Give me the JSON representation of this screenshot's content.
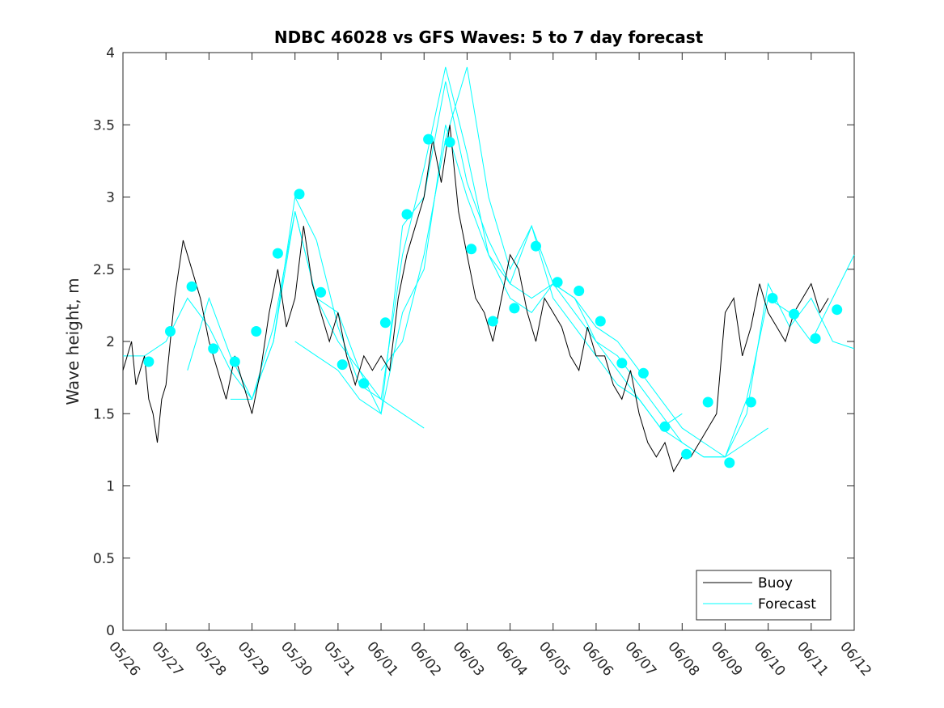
{
  "chart_data": {
    "type": "line",
    "title": "NDBC 46028 vs GFS Waves: 5 to 7 day forecast",
    "xlabel": "",
    "ylabel": "Wave height, m",
    "ylim": [
      0,
      4
    ],
    "yticks": [
      "0",
      "0.5",
      "1",
      "1.5",
      "2",
      "2.5",
      "3",
      "3.5",
      "4"
    ],
    "xlim_days": [
      0,
      17
    ],
    "xticks": [
      "05/26",
      "05/27",
      "05/28",
      "05/29",
      "05/30",
      "05/31",
      "06/01",
      "06/02",
      "06/03",
      "06/04",
      "06/05",
      "06/06",
      "06/07",
      "06/08",
      "06/09",
      "06/10",
      "06/11",
      "06/12"
    ],
    "grid": false,
    "legend_position": "bottom-right",
    "colors": {
      "buoy": "#000000",
      "forecast": "#00ffff"
    },
    "series": [
      {
        "name": "Buoy",
        "kind": "line",
        "x": [
          0,
          0.1,
          0.2,
          0.3,
          0.4,
          0.5,
          0.6,
          0.7,
          0.8,
          0.9,
          1.0,
          1.2,
          1.4,
          1.6,
          1.8,
          2.0,
          2.2,
          2.4,
          2.6,
          2.8,
          3.0,
          3.2,
          3.4,
          3.6,
          3.8,
          4.0,
          4.2,
          4.4,
          4.6,
          4.8,
          5.0,
          5.2,
          5.4,
          5.6,
          5.8,
          6.0,
          6.2,
          6.4,
          6.6,
          6.8,
          7.0,
          7.2,
          7.4,
          7.6,
          7.8,
          8.0,
          8.2,
          8.4,
          8.6,
          8.8,
          9.0,
          9.2,
          9.4,
          9.6,
          9.8,
          10.0,
          10.2,
          10.4,
          10.6,
          10.8,
          11.0,
          11.2,
          11.4,
          11.6,
          11.8,
          12.0,
          12.2,
          12.4,
          12.6,
          12.8,
          13.0,
          13.2,
          13.4,
          13.6,
          13.8,
          14.0,
          14.2,
          14.4,
          14.6,
          14.8,
          15.0,
          15.2,
          15.4,
          15.6,
          15.8,
          16.0,
          16.2,
          16.4
        ],
        "y": [
          1.8,
          1.9,
          2.0,
          1.7,
          1.8,
          1.9,
          1.6,
          1.5,
          1.3,
          1.6,
          1.7,
          2.3,
          2.7,
          2.5,
          2.3,
          2.0,
          1.8,
          1.6,
          1.9,
          1.7,
          1.5,
          1.8,
          2.2,
          2.5,
          2.1,
          2.3,
          2.8,
          2.4,
          2.2,
          2.0,
          2.2,
          1.9,
          1.7,
          1.9,
          1.8,
          1.9,
          1.8,
          2.3,
          2.6,
          2.8,
          3.0,
          3.4,
          3.1,
          3.5,
          2.9,
          2.6,
          2.3,
          2.2,
          2.0,
          2.3,
          2.6,
          2.5,
          2.2,
          2.0,
          2.3,
          2.2,
          2.1,
          1.9,
          1.8,
          2.1,
          1.9,
          1.9,
          1.7,
          1.6,
          1.8,
          1.5,
          1.3,
          1.2,
          1.3,
          1.1,
          1.2,
          1.2,
          1.3,
          1.4,
          1.5,
          2.2,
          2.3,
          1.9,
          2.1,
          2.4,
          2.2,
          2.1,
          2.0,
          2.2,
          2.3,
          2.4,
          2.2,
          2.3
        ]
      },
      {
        "name": "Forecast",
        "kind": "lines",
        "runs": [
          {
            "x": [
              0,
              0.5,
              1.0,
              1.5,
              2.0,
              2.5,
              3.0,
              3.5,
              4.0,
              4.5,
              5.0,
              5.5,
              6.0,
              6.5,
              7.0
            ],
            "y": [
              1.9,
              1.9,
              2.0,
              2.3,
              2.1,
              1.8,
              1.6,
              2.0,
              2.9,
              2.3,
              2.0,
              1.8,
              1.6,
              1.5,
              1.4
            ]
          },
          {
            "x": [
              1.5,
              2.0,
              2.5,
              3.0,
              3.5,
              4.0,
              4.5,
              5.0,
              5.5,
              6.0,
              6.5,
              7.0,
              7.5,
              8.0,
              8.5,
              9.0,
              9.5,
              10.0,
              10.5,
              11.0,
              11.5,
              12.0,
              12.5,
              13.0
            ],
            "y": [
              1.8,
              2.3,
              1.9,
              1.6,
              2.0,
              3.0,
              2.7,
              2.1,
              1.7,
              1.6,
              2.6,
              3.2,
              3.9,
              3.3,
              2.6,
              2.3,
              2.2,
              2.4,
              2.3,
              2.0,
              1.8,
              1.6,
              1.4,
              1.5
            ]
          },
          {
            "x": [
              2.5,
              3.0,
              3.5,
              4.0,
              4.5,
              5.0,
              5.5,
              6.0,
              6.5,
              7.0,
              7.5,
              8.0,
              8.5,
              9.0,
              9.5,
              10.0,
              10.5,
              11.0,
              11.5,
              12.0,
              12.5,
              13.0,
              13.5,
              14.0,
              14.5,
              15.0
            ],
            "y": [
              1.6,
              1.6,
              2.1,
              2.9,
              2.3,
              2.2,
              1.8,
              1.5,
              2.8,
              3.0,
              3.8,
              3.1,
              2.7,
              2.4,
              2.8,
              2.3,
              2.1,
              1.9,
              1.7,
              1.6,
              1.4,
              1.3,
              1.2,
              1.2,
              1.3,
              1.4
            ]
          },
          {
            "x": [
              4.0,
              4.5,
              5.0,
              5.5,
              6.0,
              6.5,
              7.0,
              7.5,
              8.0,
              8.5,
              9.0,
              9.5,
              10.0,
              10.5,
              11.0,
              11.5,
              12.0,
              12.5,
              13.0,
              13.5,
              14.0,
              14.5,
              15.0,
              15.5,
              16.0,
              16.5,
              17.0
            ],
            "y": [
              2.0,
              1.9,
              1.8,
              1.6,
              1.5,
              2.2,
              2.5,
              3.5,
              3.0,
              2.6,
              2.4,
              2.3,
              2.4,
              2.2,
              2.0,
              1.9,
              1.7,
              1.5,
              1.3,
              1.2,
              1.2,
              1.6,
              2.3,
              2.2,
              2.0,
              2.3,
              2.6
            ]
          },
          {
            "x": [
              6.0,
              6.5,
              7.0,
              7.5,
              8.0,
              8.5,
              9.0,
              9.5,
              10.0,
              10.5,
              11.0,
              11.5,
              12.0,
              12.5,
              13.0,
              13.5,
              14.0,
              14.5,
              15.0,
              15.5,
              16.0,
              16.5,
              17.0
            ],
            "y": [
              1.8,
              2.0,
              2.6,
              3.4,
              3.9,
              3.0,
              2.5,
              2.8,
              2.4,
              2.3,
              2.1,
              2.0,
              1.8,
              1.6,
              1.4,
              1.3,
              1.2,
              1.5,
              2.4,
              2.1,
              2.3,
              2.0,
              1.95
            ]
          }
        ]
      },
      {
        "name": "Forecast points",
        "kind": "scatter",
        "x": [
          0.6,
          1.1,
          1.6,
          2.1,
          2.6,
          3.1,
          3.6,
          4.1,
          4.6,
          5.1,
          5.6,
          6.1,
          6.6,
          7.1,
          7.6,
          8.1,
          8.6,
          9.1,
          9.6,
          10.1,
          10.6,
          11.1,
          11.6,
          12.1,
          12.6,
          13.1,
          13.6,
          14.1,
          14.6,
          15.1,
          15.6,
          16.1,
          16.6
        ],
        "y": [
          1.86,
          2.07,
          2.38,
          1.95,
          1.86,
          2.07,
          2.61,
          3.02,
          2.34,
          1.84,
          1.71,
          2.13,
          2.88,
          3.4,
          3.38,
          2.64,
          2.14,
          2.23,
          2.66,
          2.41,
          2.35,
          2.14,
          1.85,
          1.78,
          1.41,
          1.22,
          1.58,
          1.16,
          1.58,
          2.3,
          2.19,
          2.02,
          2.22
        ]
      }
    ]
  },
  "legend": {
    "items": [
      {
        "label": "Buoy",
        "color": "#000000"
      },
      {
        "label": "Forecast",
        "color": "#00ffff"
      }
    ]
  }
}
